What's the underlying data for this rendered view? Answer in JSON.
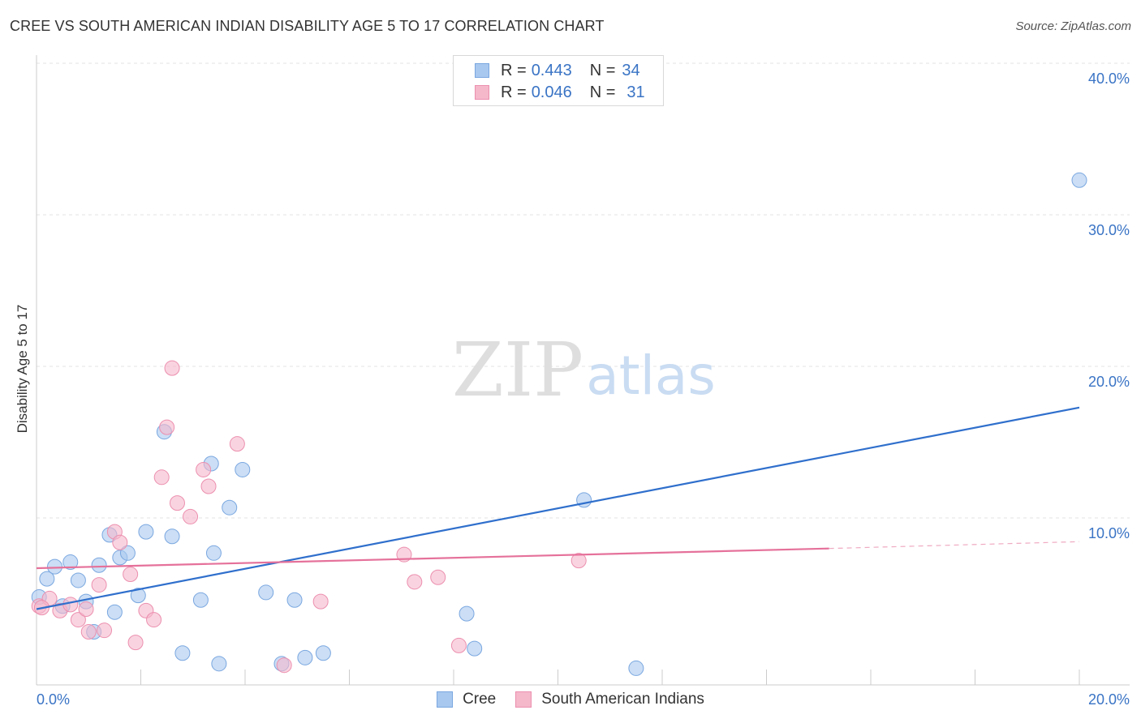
{
  "header": {
    "title": "CREE VS SOUTH AMERICAN INDIAN DISABILITY AGE 5 TO 17 CORRELATION CHART",
    "source": "Source: ZipAtlas.com"
  },
  "watermark": {
    "zip": "ZIP",
    "atlas": "atlas"
  },
  "legend": {
    "rows": [
      {
        "r_key": "R = ",
        "r_value": "0.443",
        "n_key": "N = ",
        "n_value": "34",
        "color": "#a9c8ef"
      },
      {
        "r_key": "R = ",
        "r_value": "0.046",
        "n_key": "N = ",
        "n_value": "31",
        "color": "#f5b8cb"
      }
    ]
  },
  "chart_data": {
    "type": "scatter",
    "title": "CREE VS SOUTH AMERICAN INDIAN DISABILITY AGE 5 TO 17 CORRELATION CHART",
    "xlabel": "",
    "ylabel": "Disability Age 5 to 17",
    "xlim": [
      0,
      20
    ],
    "ylim": [
      0,
      40
    ],
    "x_tick_labels": [
      {
        "value": 0,
        "label": "0.0%"
      },
      {
        "value": 20,
        "label": "20.0%"
      }
    ],
    "y_tick_labels": [
      {
        "value": 10,
        "label": "10.0%"
      },
      {
        "value": 20,
        "label": "20.0%"
      },
      {
        "value": 30,
        "label": "30.0%"
      },
      {
        "value": 40,
        "label": "40.0%"
      }
    ],
    "grid": true,
    "legend_position": "top-center",
    "series": [
      {
        "name": "Cree",
        "color": "#a9c8ef",
        "stroke": "#7aa7e0",
        "line_color": "#2f6fcc",
        "points": [
          [
            0.05,
            5.8
          ],
          [
            0.2,
            7.0
          ],
          [
            0.35,
            7.8
          ],
          [
            0.5,
            5.2
          ],
          [
            0.65,
            8.1
          ],
          [
            0.8,
            6.9
          ],
          [
            0.95,
            5.5
          ],
          [
            1.1,
            3.5
          ],
          [
            1.2,
            7.9
          ],
          [
            1.4,
            9.9
          ],
          [
            1.5,
            4.8
          ],
          [
            1.6,
            8.4
          ],
          [
            1.75,
            8.7
          ],
          [
            1.95,
            5.9
          ],
          [
            2.1,
            10.1
          ],
          [
            2.45,
            16.7
          ],
          [
            2.6,
            9.8
          ],
          [
            2.8,
            2.1
          ],
          [
            3.15,
            5.6
          ],
          [
            3.35,
            14.6
          ],
          [
            3.4,
            8.7
          ],
          [
            3.5,
            1.4
          ],
          [
            3.7,
            11.7
          ],
          [
            3.95,
            14.2
          ],
          [
            4.4,
            6.1
          ],
          [
            4.7,
            1.4
          ],
          [
            4.95,
            5.6
          ],
          [
            5.15,
            1.8
          ],
          [
            5.5,
            2.1
          ],
          [
            8.25,
            4.7
          ],
          [
            8.4,
            2.4
          ],
          [
            10.5,
            12.2
          ],
          [
            11.5,
            1.1
          ],
          [
            20.0,
            33.3
          ]
        ],
        "trend": {
          "x": [
            0,
            20
          ],
          "y": [
            5.0,
            18.3
          ]
        }
      },
      {
        "name": "South American Indians",
        "color": "#f5b8cb",
        "stroke": "#ec8fae",
        "line_color": "#e5719a",
        "points": [
          [
            0.05,
            5.2
          ],
          [
            0.25,
            5.7
          ],
          [
            0.45,
            4.9
          ],
          [
            0.65,
            5.3
          ],
          [
            0.8,
            4.3
          ],
          [
            0.95,
            5.0
          ],
          [
            1.0,
            3.5
          ],
          [
            1.2,
            6.6
          ],
          [
            1.3,
            3.6
          ],
          [
            1.5,
            10.1
          ],
          [
            1.6,
            9.4
          ],
          [
            1.8,
            7.3
          ],
          [
            1.9,
            2.8
          ],
          [
            2.1,
            4.9
          ],
          [
            2.25,
            4.3
          ],
          [
            2.4,
            13.7
          ],
          [
            2.5,
            17.0
          ],
          [
            2.6,
            20.9
          ],
          [
            2.7,
            12.0
          ],
          [
            2.95,
            11.1
          ],
          [
            3.2,
            14.2
          ],
          [
            3.3,
            13.1
          ],
          [
            3.85,
            15.9
          ],
          [
            4.75,
            1.3
          ],
          [
            5.45,
            5.5
          ],
          [
            7.05,
            8.6
          ],
          [
            7.25,
            6.8
          ],
          [
            7.7,
            7.1
          ],
          [
            8.1,
            2.6
          ],
          [
            10.4,
            8.2
          ],
          [
            0.1,
            5.1
          ]
        ],
        "trend": {
          "x": [
            0,
            15.2
          ],
          "y": [
            7.7,
            9.0
          ]
        },
        "trend_dashed": {
          "x": [
            15.2,
            20
          ],
          "y": [
            9.0,
            9.45
          ]
        }
      }
    ]
  },
  "bottom_legend": {
    "items": [
      {
        "label": "Cree",
        "color": "#a9c8ef"
      },
      {
        "label": "South American Indians",
        "color": "#f5b8cb"
      }
    ]
  }
}
